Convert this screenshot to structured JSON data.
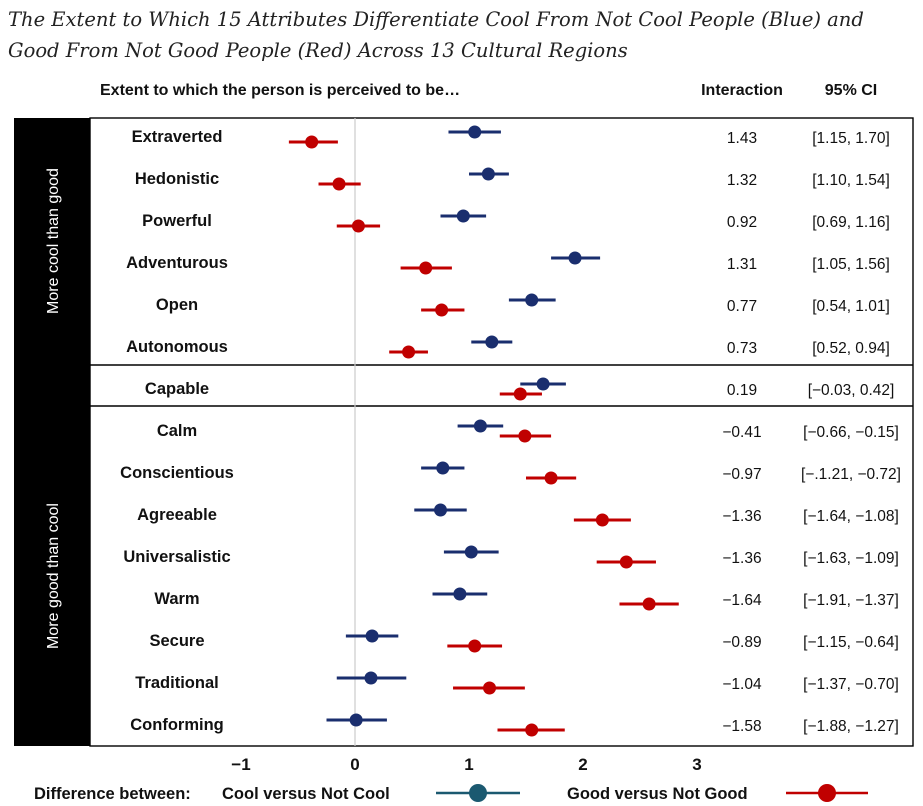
{
  "title": "The Extent to Which 15 Attributes Differentiate Cool From Not Cool People (Blue) and Good From Not Good People (Red) Across 13 Cultural Regions",
  "header": {
    "extent": "Extent to which the person is perceived to be…",
    "interaction": "Interaction",
    "ci": "95% CI"
  },
  "groups": {
    "cool": "More cool than good",
    "good": "More good than cool"
  },
  "legend": {
    "prefix": "Difference between:",
    "cool": "Cool versus Not Cool",
    "good": "Good versus Not Good"
  },
  "colors": {
    "cool": "#1a2e6e",
    "good": "#c00000"
  },
  "chart_data": {
    "type": "forest",
    "xlim": [
      -1,
      3
    ],
    "xticks": [
      -1,
      0,
      1,
      2,
      3
    ],
    "xtick_labels": [
      "−1",
      "0",
      "1",
      "2",
      "3"
    ],
    "attributes": [
      "Extraverted",
      "Hedonistic",
      "Powerful",
      "Adventurous",
      "Open",
      "Autonomous",
      "Capable",
      "Calm",
      "Conscientious",
      "Agreeable",
      "Universalistic",
      "Warm",
      "Secure",
      "Traditional",
      "Conforming"
    ],
    "series": [
      {
        "name": "Cool versus Not Cool",
        "estimate": [
          1.05,
          1.17,
          0.95,
          1.93,
          1.55,
          1.2,
          1.65,
          1.1,
          0.77,
          0.75,
          1.02,
          0.92,
          0.15,
          0.14,
          0.01
        ],
        "lower": [
          0.82,
          1.0,
          0.75,
          1.72,
          1.35,
          1.02,
          1.45,
          0.9,
          0.58,
          0.52,
          0.78,
          0.68,
          -0.08,
          -0.16,
          -0.25
        ],
        "upper": [
          1.28,
          1.35,
          1.15,
          2.15,
          1.76,
          1.38,
          1.85,
          1.3,
          0.96,
          0.98,
          1.26,
          1.16,
          0.38,
          0.45,
          0.28
        ]
      },
      {
        "name": "Good versus Not Good",
        "estimate": [
          -0.38,
          -0.14,
          0.03,
          0.62,
          0.76,
          0.47,
          1.45,
          1.49,
          1.72,
          2.17,
          2.38,
          2.58,
          1.05,
          1.18,
          1.55
        ],
        "lower": [
          -0.58,
          -0.32,
          -0.16,
          0.4,
          0.58,
          0.3,
          1.27,
          1.27,
          1.5,
          1.92,
          2.12,
          2.32,
          0.81,
          0.86,
          1.25
        ],
        "upper": [
          -0.15,
          0.05,
          0.22,
          0.85,
          0.96,
          0.64,
          1.64,
          1.72,
          1.94,
          2.42,
          2.64,
          2.84,
          1.29,
          1.49,
          1.84
        ]
      }
    ],
    "interaction": [
      "1.43",
      "1.32",
      "0.92",
      "1.31",
      "0.77",
      "0.73",
      "0.19",
      "−0.41",
      "−0.97",
      "−1.36",
      "−1.36",
      "−1.64",
      "−0.89",
      "−1.04",
      "−1.58"
    ],
    "ci": [
      "[1.15, 1.70]",
      "[1.10, 1.54]",
      "[0.69, 1.16]",
      "[1.05, 1.56]",
      "[0.54, 1.01]",
      "[0.52, 0.94]",
      "[−0.03, 0.42]",
      "[−0.66, −0.15]",
      "[−.1.21, −0.72]",
      "[−1.64, −1.08]",
      "[−1.63, −1.09]",
      "[−1.91, −1.37]",
      "[−1.15, −0.64]",
      "[−1.37, −0.70]",
      "[−1.88, −1.27]"
    ]
  }
}
